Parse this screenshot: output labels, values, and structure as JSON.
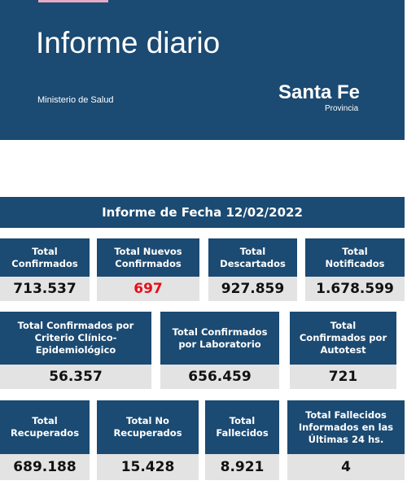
{
  "header": {
    "title": "Informe diario",
    "ministry": "Ministerio de Salud",
    "brand": "Santa Fe",
    "brand_sub": "Provincia"
  },
  "banner": "Informe de Fecha 12/02/2022",
  "rows": [
    [
      {
        "label": "Total Confirmados",
        "value": "713.537"
      },
      {
        "label": "Total Nuevos Confirmados",
        "value": "697",
        "color": "#e3101a"
      },
      {
        "label": "Total Descartados",
        "value": "927.859"
      },
      {
        "label": "Total Notificados",
        "value": "1.678.599"
      }
    ],
    [
      {
        "label": "Total Confirmados por Criterio Clínico-Epidemiológico",
        "value": "56.357"
      },
      {
        "label": "Total Confirmados por Laboratorio",
        "value": "656.459"
      },
      {
        "label": "Total Confirmados por Autotest",
        "value": "721"
      }
    ],
    [
      {
        "label": "Total Recuperados",
        "value": "689.188"
      },
      {
        "label": "Total No Recuperados",
        "value": "15.428"
      },
      {
        "label": "Total Fallecidos",
        "value": "8.921"
      },
      {
        "label": "Total Fallecidos Informados en las Últimas 24 hs.",
        "value": "4"
      }
    ]
  ]
}
